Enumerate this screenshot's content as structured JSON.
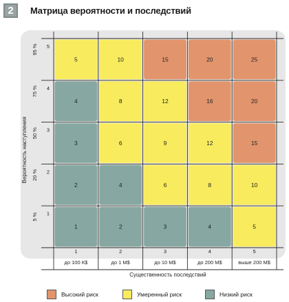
{
  "badge": "2",
  "title": "Матрица вероятности и последствий",
  "y_axis_title": "Вероятность наступления",
  "x_axis_title": "Существенность последствий",
  "row_numbers": [
    "5",
    "4",
    "3",
    "2",
    "1"
  ],
  "row_percents": [
    "95 %",
    "75 %",
    "50 %",
    "20 %",
    "5 %"
  ],
  "col_numbers": [
    "1",
    "2",
    "3",
    "4",
    "5"
  ],
  "col_labels": [
    "до 100 К$",
    "до 1 М$",
    "до 10 М$",
    "до 200 М$",
    "выше 200 М$"
  ],
  "cells": [
    [
      5,
      10,
      15,
      20,
      25
    ],
    [
      4,
      8,
      12,
      16,
      20
    ],
    [
      3,
      6,
      9,
      12,
      15
    ],
    [
      2,
      4,
      6,
      8,
      10
    ],
    [
      1,
      2,
      3,
      4,
      5
    ]
  ],
  "risk_levels": [
    [
      "mid",
      "mid",
      "high",
      "high",
      "high"
    ],
    [
      "low",
      "mid",
      "mid",
      "high",
      "high"
    ],
    [
      "low",
      "mid",
      "mid",
      "mid",
      "high"
    ],
    [
      "low",
      "low",
      "mid",
      "mid",
      "mid"
    ],
    [
      "low",
      "low",
      "low",
      "low",
      "mid"
    ]
  ],
  "colors": {
    "high": "#e2956c",
    "mid": "#f8ec5e",
    "low": "#87a8a2",
    "background": "#e7e7e7",
    "grid": "#2b2b2b"
  },
  "legend": [
    {
      "key": "high",
      "label": "Высокий риск"
    },
    {
      "key": "mid",
      "label": "Умеренный риск"
    },
    {
      "key": "low",
      "label": "Низкий риск"
    }
  ]
}
